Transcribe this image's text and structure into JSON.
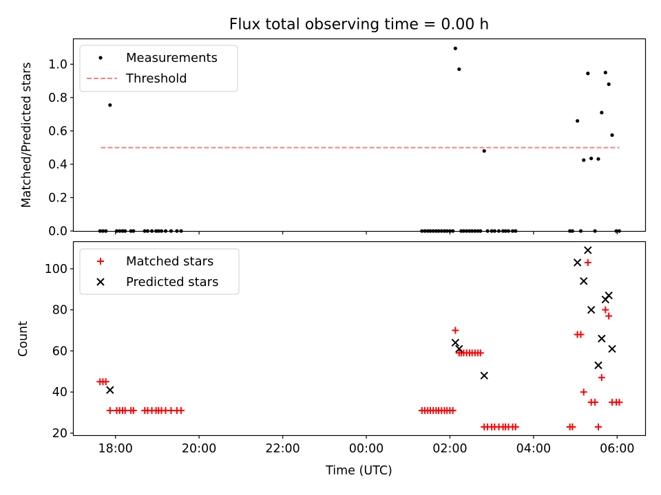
{
  "chart_data": [
    {
      "type": "scatter",
      "title": "Flux total observing time = 0.00 h",
      "xlabel": "",
      "ylabel": "Matched/Predicted stars",
      "xlim": [
        -7.0,
        6.67
      ],
      "ylim": [
        0.0,
        1.15
      ],
      "yticks": [
        0.0,
        0.2,
        0.4,
        0.6,
        0.8,
        1.0
      ],
      "ytick_labels": [
        "0.0",
        "0.2",
        "0.4",
        "0.6",
        "0.8",
        "1.0"
      ],
      "xticks": [
        -6,
        -4,
        -2,
        0,
        2,
        4,
        6
      ],
      "grid": false,
      "legend": {
        "placement": "top-left",
        "entries": [
          "Measurements",
          "Threshold"
        ]
      },
      "series": [
        {
          "name": "Measurements",
          "marker": "dot",
          "color": "#000000",
          "points": [
            [
              -6.37,
              0.0
            ],
            [
              -6.3,
              0.0
            ],
            [
              -6.23,
              0.0
            ],
            [
              -6.13,
              0.755
            ],
            [
              -5.97,
              0.0
            ],
            [
              -5.9,
              0.0
            ],
            [
              -5.83,
              0.0
            ],
            [
              -5.77,
              0.0
            ],
            [
              -5.63,
              0.0
            ],
            [
              -5.57,
              0.0
            ],
            [
              -5.3,
              0.0
            ],
            [
              -5.23,
              0.0
            ],
            [
              -5.13,
              0.0
            ],
            [
              -5.03,
              0.0
            ],
            [
              -4.97,
              0.0
            ],
            [
              -4.9,
              0.0
            ],
            [
              -4.8,
              0.0
            ],
            [
              -4.67,
              0.0
            ],
            [
              -4.53,
              0.0
            ],
            [
              -4.43,
              0.0
            ],
            [
              1.33,
              0.0
            ],
            [
              1.4,
              0.0
            ],
            [
              1.47,
              0.0
            ],
            [
              1.53,
              0.0
            ],
            [
              1.6,
              0.0
            ],
            [
              1.67,
              0.0
            ],
            [
              1.73,
              0.0
            ],
            [
              1.8,
              0.0
            ],
            [
              1.87,
              0.0
            ],
            [
              1.93,
              0.0
            ],
            [
              2.0,
              0.0
            ],
            [
              2.07,
              0.0
            ],
            [
              2.13,
              1.095
            ],
            [
              2.22,
              0.97
            ],
            [
              2.27,
              0.0
            ],
            [
              2.33,
              0.0
            ],
            [
              2.4,
              0.0
            ],
            [
              2.47,
              0.0
            ],
            [
              2.53,
              0.0
            ],
            [
              2.6,
              0.0
            ],
            [
              2.67,
              0.0
            ],
            [
              2.73,
              0.0
            ],
            [
              2.82,
              0.48
            ],
            [
              2.9,
              0.0
            ],
            [
              3.0,
              0.0
            ],
            [
              3.07,
              0.0
            ],
            [
              3.17,
              0.0
            ],
            [
              3.27,
              0.0
            ],
            [
              3.33,
              0.0
            ],
            [
              3.4,
              0.0
            ],
            [
              3.5,
              0.0
            ],
            [
              3.57,
              0.0
            ],
            [
              4.87,
              0.0
            ],
            [
              4.93,
              0.0
            ],
            [
              5.05,
              0.66
            ],
            [
              5.13,
              0.0
            ],
            [
              5.2,
              0.425
            ],
            [
              5.3,
              0.945
            ],
            [
              5.38,
              0.435
            ],
            [
              5.47,
              0.0
            ],
            [
              5.55,
              0.432
            ],
            [
              5.63,
              0.71
            ],
            [
              5.72,
              0.95
            ],
            [
              5.8,
              0.88
            ],
            [
              5.88,
              0.575
            ],
            [
              5.98,
              0.0
            ],
            [
              6.05,
              0.0
            ]
          ]
        },
        {
          "name": "Threshold",
          "style": "dashed",
          "color": "#ff8080",
          "points": [
            [
              -6.35,
              0.5
            ],
            [
              6.05,
              0.5
            ]
          ]
        }
      ]
    },
    {
      "type": "scatter",
      "title": "",
      "xlabel": "Time (UTC)",
      "ylabel": "Count",
      "xlim": [
        -7.0,
        6.67
      ],
      "ylim": [
        19.0,
        113.0
      ],
      "yticks": [
        20,
        40,
        60,
        80,
        100
      ],
      "ytick_labels": [
        "20",
        "40",
        "60",
        "80",
        "100"
      ],
      "xticks": [
        -6,
        -4,
        -2,
        0,
        2,
        4,
        6
      ],
      "xtick_labels": [
        "18:00",
        "20:00",
        "22:00",
        "00:00",
        "02:00",
        "04:00",
        "06:00"
      ],
      "grid": false,
      "legend": {
        "placement": "top-left",
        "entries": [
          "Matched stars",
          "Predicted stars"
        ]
      },
      "series": [
        {
          "name": "Matched stars",
          "marker": "plus",
          "color": "#ff0000",
          "points": [
            [
              -6.37,
              45
            ],
            [
              -6.3,
              45
            ],
            [
              -6.23,
              45
            ],
            [
              -6.13,
              31
            ],
            [
              -5.97,
              31
            ],
            [
              -5.9,
              31
            ],
            [
              -5.83,
              31
            ],
            [
              -5.77,
              31
            ],
            [
              -5.63,
              31
            ],
            [
              -5.57,
              31
            ],
            [
              -5.3,
              31
            ],
            [
              -5.23,
              31
            ],
            [
              -5.13,
              31
            ],
            [
              -5.03,
              31
            ],
            [
              -4.97,
              31
            ],
            [
              -4.9,
              31
            ],
            [
              -4.8,
              31
            ],
            [
              -4.67,
              31
            ],
            [
              -4.53,
              31
            ],
            [
              -4.43,
              31
            ],
            [
              1.33,
              31
            ],
            [
              1.4,
              31
            ],
            [
              1.47,
              31
            ],
            [
              1.53,
              31
            ],
            [
              1.6,
              31
            ],
            [
              1.67,
              31
            ],
            [
              1.73,
              31
            ],
            [
              1.8,
              31
            ],
            [
              1.87,
              31
            ],
            [
              1.93,
              31
            ],
            [
              2.0,
              31
            ],
            [
              2.07,
              31
            ],
            [
              2.13,
              70
            ],
            [
              2.22,
              59
            ],
            [
              2.27,
              59
            ],
            [
              2.33,
              59
            ],
            [
              2.4,
              59
            ],
            [
              2.47,
              59
            ],
            [
              2.53,
              59
            ],
            [
              2.6,
              59
            ],
            [
              2.67,
              59
            ],
            [
              2.73,
              59
            ],
            [
              2.82,
              23
            ],
            [
              2.9,
              23
            ],
            [
              3.0,
              23
            ],
            [
              3.07,
              23
            ],
            [
              3.17,
              23
            ],
            [
              3.27,
              23
            ],
            [
              3.33,
              23
            ],
            [
              3.4,
              23
            ],
            [
              3.5,
              23
            ],
            [
              3.57,
              23
            ],
            [
              4.87,
              23
            ],
            [
              4.93,
              23
            ],
            [
              5.05,
              68
            ],
            [
              5.13,
              68
            ],
            [
              5.2,
              40
            ],
            [
              5.3,
              103
            ],
            [
              5.38,
              35
            ],
            [
              5.47,
              35
            ],
            [
              5.55,
              23
            ],
            [
              5.63,
              47
            ],
            [
              5.72,
              80
            ],
            [
              5.8,
              77
            ],
            [
              5.88,
              35
            ],
            [
              5.98,
              35
            ],
            [
              6.05,
              35
            ]
          ]
        },
        {
          "name": "Predicted stars",
          "marker": "x",
          "color": "#000000",
          "points": [
            [
              -6.13,
              41
            ],
            [
              2.13,
              64
            ],
            [
              2.22,
              61
            ],
            [
              2.82,
              48
            ],
            [
              5.05,
              103
            ],
            [
              5.2,
              94
            ],
            [
              5.3,
              109
            ],
            [
              5.38,
              80
            ],
            [
              5.55,
              53
            ],
            [
              5.63,
              66
            ],
            [
              5.72,
              85
            ],
            [
              5.8,
              87
            ],
            [
              5.88,
              61
            ]
          ]
        }
      ]
    }
  ]
}
